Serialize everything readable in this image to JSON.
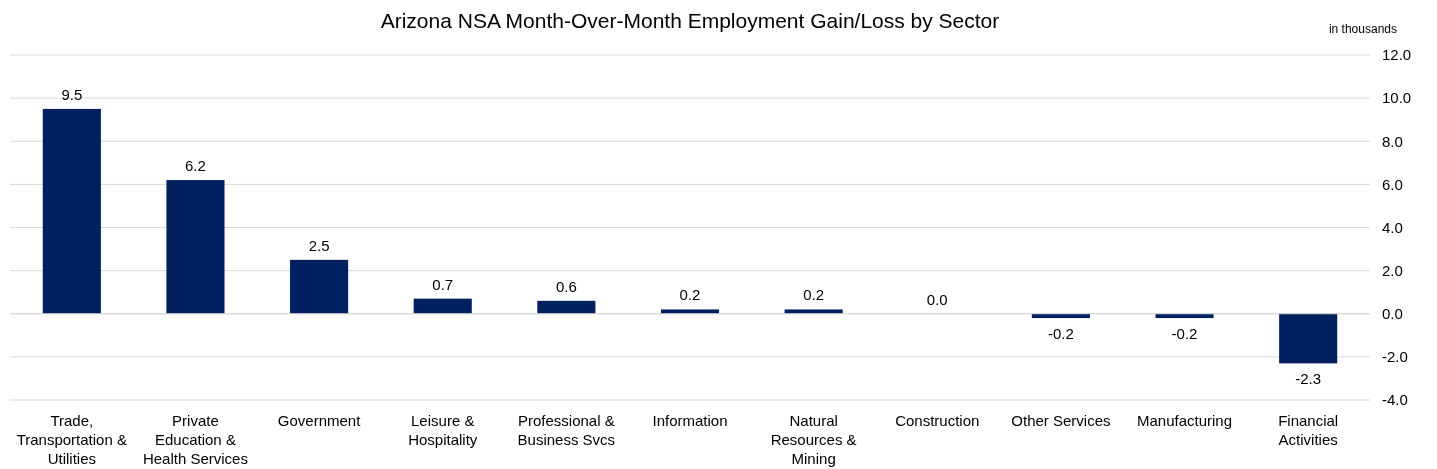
{
  "chart_data": {
    "type": "bar",
    "title": "Arizona NSA Month-Over-Month  Employment Gain/Loss by Sector",
    "annotations": [
      "in thousands"
    ],
    "categories": [
      "Trade, Transportation & Utilities",
      "Private Education & Health Services",
      "Government",
      "Leisure & Hospitality",
      "Professional & Business Svcs",
      "Information",
      "Natural Resources & Mining",
      "Construction",
      "Other Services",
      "Manufacturing",
      "Financial Activities"
    ],
    "values": [
      9.5,
      6.2,
      2.5,
      0.7,
      0.6,
      0.2,
      0.2,
      0.0,
      -0.2,
      -0.2,
      -2.3
    ],
    "value_labels": [
      "9.5",
      "6.2",
      "2.5",
      "0.7",
      "0.6",
      "0.2",
      "0.2",
      "0.0",
      "-0.2",
      "-0.2",
      "-2.3"
    ],
    "color": "#002060",
    "ylim": [
      -4,
      12
    ],
    "yticks": [
      {
        "value": -4,
        "label": "-4.0"
      },
      {
        "value": -2,
        "label": "-2.0"
      },
      {
        "value": 0,
        "label": "0.0"
      },
      {
        "value": 2,
        "label": "2.0"
      },
      {
        "value": 4,
        "label": "4.0"
      },
      {
        "value": 6,
        "label": "6.0"
      },
      {
        "value": 8,
        "label": "8.0"
      },
      {
        "value": 10,
        "label": "10.0"
      },
      {
        "value": 12,
        "label": "12.0"
      }
    ],
    "grid": "y"
  }
}
